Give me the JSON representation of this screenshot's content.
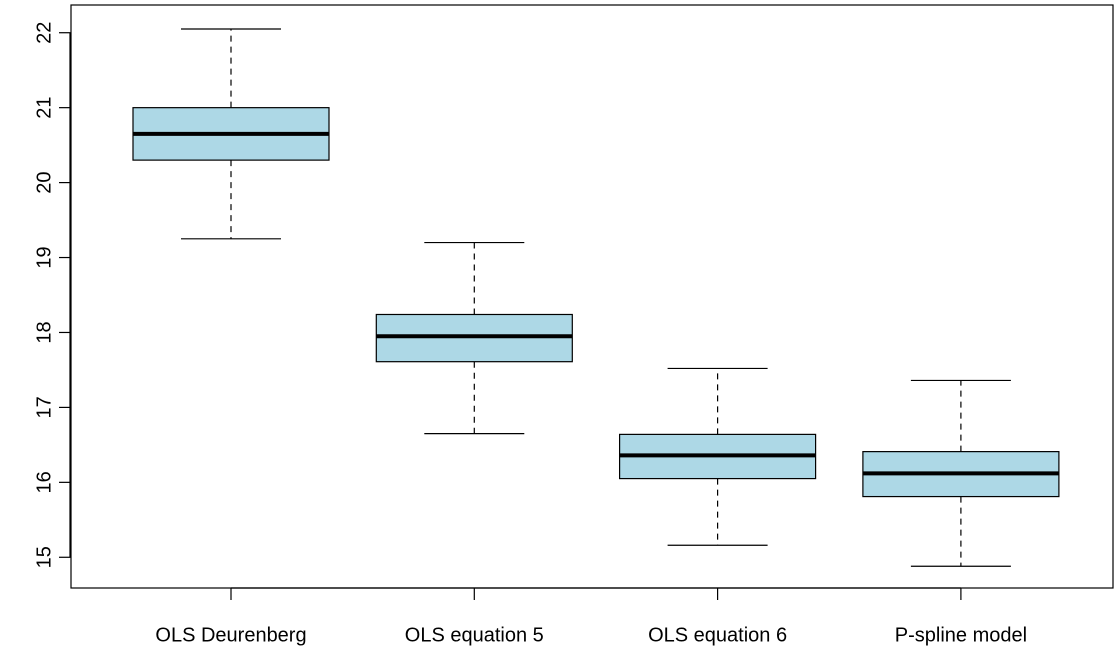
{
  "chart_data": {
    "type": "box",
    "categories": [
      "OLS Deurenberg",
      "OLS equation 5",
      "OLS equation 6",
      "P-spline model"
    ],
    "boxes": [
      {
        "min": 19.25,
        "q1": 20.3,
        "median": 20.65,
        "q3": 21.0,
        "max": 22.05
      },
      {
        "min": 16.65,
        "q1": 17.61,
        "median": 17.95,
        "q3": 18.24,
        "max": 19.2
      },
      {
        "min": 15.16,
        "q1": 16.05,
        "median": 16.36,
        "q3": 16.64,
        "max": 17.52
      },
      {
        "min": 14.88,
        "q1": 15.81,
        "median": 16.12,
        "q3": 16.41,
        "max": 17.36
      }
    ],
    "color": "#add8e6",
    "ylim": [
      14.59,
      22.37
    ],
    "yticks": [
      15,
      16,
      17,
      18,
      19,
      20,
      21,
      22
    ]
  }
}
